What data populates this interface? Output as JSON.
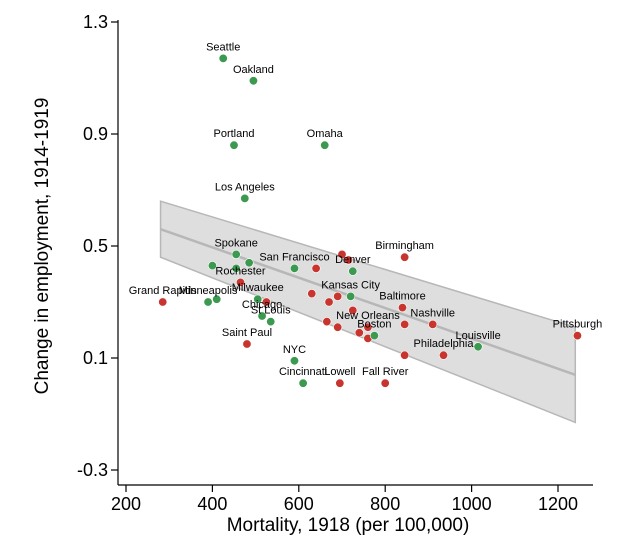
{
  "chart_data": {
    "type": "scatter",
    "title": "",
    "xlabel": "Mortality, 1918 (per 100,000)",
    "ylabel": "Change in employment, 1914-1919",
    "xlim": [
      180,
      1250
    ],
    "ylim": [
      -0.35,
      1.3
    ],
    "x_ticks": [
      200,
      400,
      600,
      800,
      1000,
      1200
    ],
    "x_tick_labels": [
      "200",
      "400",
      "600",
      "800",
      "1000",
      "1200"
    ],
    "y_ticks": [
      -0.3,
      0.1,
      0.5,
      0.9,
      1.3
    ],
    "y_tick_labels": [
      "-0.3",
      "0.1",
      "0.5",
      "0.9",
      "1.3"
    ],
    "colors": {
      "red": "#c8352f",
      "green": "#3b9a50",
      "line": "#b7b7b7",
      "band": "#dedede"
    },
    "fit": {
      "x": [
        280,
        1240
      ],
      "y": [
        0.56,
        0.04
      ],
      "ci_upper": [
        0.66,
        0.21
      ],
      "ci_lower": [
        0.46,
        -0.13
      ]
    },
    "points": [
      {
        "label": "Seattle",
        "x": 425,
        "y": 1.17,
        "color": "green"
      },
      {
        "label": "Oakland",
        "x": 495,
        "y": 1.09,
        "color": "green"
      },
      {
        "label": "Portland",
        "x": 450,
        "y": 0.86,
        "color": "green"
      },
      {
        "label": "Omaha",
        "x": 660,
        "y": 0.86,
        "color": "green"
      },
      {
        "label": "Los Angeles",
        "x": 475,
        "y": 0.67,
        "color": "green"
      },
      {
        "label": "Spokane",
        "x": 455,
        "y": 0.47,
        "color": "green"
      },
      {
        "label": "",
        "x": 400,
        "y": 0.43,
        "color": "green"
      },
      {
        "label": "",
        "x": 485,
        "y": 0.44,
        "color": "green"
      },
      {
        "label": "",
        "x": 455,
        "y": 0.42,
        "color": "green"
      },
      {
        "label": "San Francisco",
        "x": 590,
        "y": 0.42,
        "color": "green"
      },
      {
        "label": "",
        "x": 640,
        "y": 0.42,
        "color": "red"
      },
      {
        "label": "Denver",
        "x": 725,
        "y": 0.41,
        "color": "green"
      },
      {
        "label": "",
        "x": 700,
        "y": 0.47,
        "color": "red"
      },
      {
        "label": "",
        "x": 715,
        "y": 0.45,
        "color": "red"
      },
      {
        "label": "Birmingham",
        "x": 845,
        "y": 0.46,
        "color": "red"
      },
      {
        "label": "Rochester",
        "x": 465,
        "y": 0.37,
        "color": "red"
      },
      {
        "label": "Grand Rapids",
        "x": 285,
        "y": 0.3,
        "color": "red"
      },
      {
        "label": "Minneapolis",
        "x": 390,
        "y": 0.3,
        "color": "green"
      },
      {
        "label": "Milwaukee",
        "x": 505,
        "y": 0.31,
        "color": "green"
      },
      {
        "label": "",
        "x": 525,
        "y": 0.3,
        "color": "red"
      },
      {
        "label": "Chicago",
        "x": 515,
        "y": 0.25,
        "color": "green"
      },
      {
        "label": "St Louis",
        "x": 535,
        "y": 0.23,
        "color": "green"
      },
      {
        "label": "",
        "x": 410,
        "y": 0.31,
        "color": "green"
      },
      {
        "label": "Kansas City",
        "x": 720,
        "y": 0.32,
        "color": "green"
      },
      {
        "label": "",
        "x": 630,
        "y": 0.33,
        "color": "red"
      },
      {
        "label": "",
        "x": 670,
        "y": 0.3,
        "color": "red"
      },
      {
        "label": "",
        "x": 690,
        "y": 0.32,
        "color": "red"
      },
      {
        "label": "",
        "x": 725,
        "y": 0.27,
        "color": "red"
      },
      {
        "label": "Baltimore",
        "x": 840,
        "y": 0.28,
        "color": "red"
      },
      {
        "label": "Saint Paul",
        "x": 480,
        "y": 0.15,
        "color": "red"
      },
      {
        "label": "New Orleans",
        "x": 760,
        "y": 0.21,
        "color": "red"
      },
      {
        "label": "",
        "x": 665,
        "y": 0.23,
        "color": "red"
      },
      {
        "label": "",
        "x": 690,
        "y": 0.21,
        "color": "red"
      },
      {
        "label": "",
        "x": 740,
        "y": 0.19,
        "color": "red"
      },
      {
        "label": "",
        "x": 760,
        "y": 0.17,
        "color": "red"
      },
      {
        "label": "Boston",
        "x": 775,
        "y": 0.18,
        "color": "green"
      },
      {
        "label": "Nashville",
        "x": 910,
        "y": 0.22,
        "color": "red"
      },
      {
        "label": "",
        "x": 845,
        "y": 0.22,
        "color": "red"
      },
      {
        "label": "Philadelphia",
        "x": 935,
        "y": 0.11,
        "color": "red"
      },
      {
        "label": "",
        "x": 845,
        "y": 0.11,
        "color": "red"
      },
      {
        "label": "Louisville",
        "x": 1015,
        "y": 0.14,
        "color": "green"
      },
      {
        "label": "Pittsburgh",
        "x": 1245,
        "y": 0.18,
        "color": "red"
      },
      {
        "label": "NYC",
        "x": 590,
        "y": 0.09,
        "color": "green"
      },
      {
        "label": "Cincinnati",
        "x": 610,
        "y": 0.01,
        "color": "green"
      },
      {
        "label": "Lowell",
        "x": 695,
        "y": 0.01,
        "color": "red"
      },
      {
        "label": "Fall River",
        "x": 800,
        "y": 0.01,
        "color": "red"
      }
    ]
  }
}
